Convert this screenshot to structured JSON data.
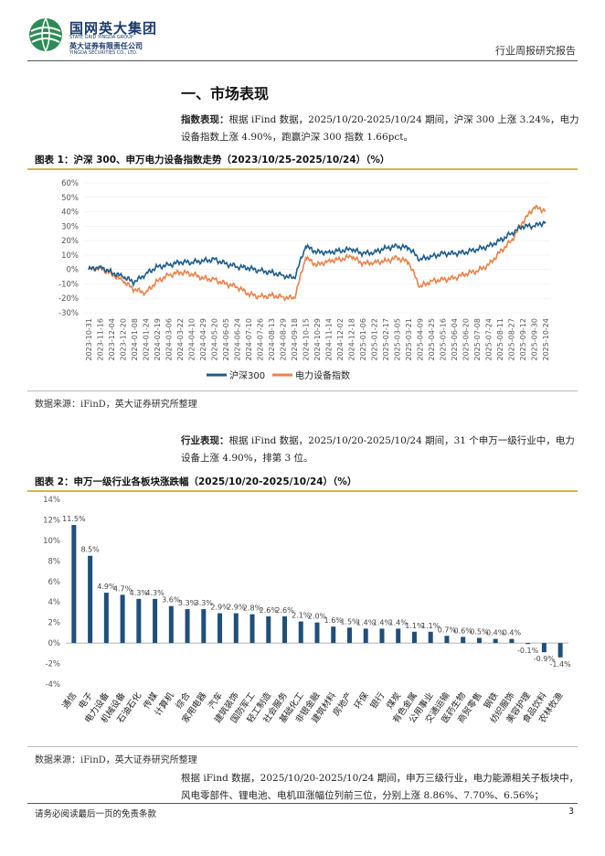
{
  "header": {
    "company_cn": "国网英大集团",
    "company_en": "STATE GRID YINGDA GROUP",
    "securities_cn": "英大证券有限责任公司",
    "securities_en": "YINGDA SECURITIES CO., LTD.",
    "report_type": "行业周报研究报告"
  },
  "section": {
    "title": "一、市场表现"
  },
  "para1": {
    "label": "指数表现：",
    "text": "根据 iFind 数据，2025/10/20-2025/10/24 期间，沪深 300 上涨 3.24%，电力设备指数上涨 4.90%，跑赢沪深 300 指数 1.66pct。"
  },
  "figure1": {
    "title": "图表 1：沪深 300、申万电力设备指数走势（2023/10/25-2025/10/24）（%）",
    "source": "数据来源：iFinD，英大证券研究所整理"
  },
  "para2": {
    "label": "行业表现：",
    "text": "根据 iFind 数据，2025/10/20-2025/10/24 期间，31 个申万一级行业中，电力设备上涨 4.90%，排第 3 位。"
  },
  "figure2": {
    "title": "图表 2：申万一级行业各板块涨跌幅（2025/10/20-2025/10/24）（%）",
    "source": "数据来源：iFinD，英大证券研究所整理"
  },
  "para3": {
    "text": "根据 iFind 数据，2025/10/20-2025/10/24 期间，申万三级行业，电力能源相关子板块中，风电零部件、锂电池、电机Ⅲ涨幅位列前三位，分别上涨 8.86%、7.70%、6.56%；"
  },
  "footer": {
    "disclaimer": "请务必阅读最后一页的免责条款",
    "page": "3"
  },
  "colors": {
    "hs300": "#1f5c8a",
    "power": "#e8834a",
    "bar": "#1f4f7a",
    "gold": "#d9b44a"
  },
  "chart_data": [
    {
      "type": "line",
      "title": "沪深300、申万电力设备指数走势",
      "ylim": [
        -30,
        60
      ],
      "yticks": [
        "60%",
        "50%",
        "40%",
        "30%",
        "20%",
        "10%",
        "0%",
        "-10%",
        "-20%",
        "-30%"
      ],
      "x": [
        "2023-10-31",
        "2023-11-16",
        "2023-12-04",
        "2023-12-20",
        "2024-01-08",
        "2024-01-24",
        "2024-02-19",
        "2024-03-06",
        "2024-03-22",
        "2024-04-10",
        "2024-04-29",
        "2024-05-20",
        "2024-06-05",
        "2024-06-24",
        "2024-07-10",
        "2024-07-26",
        "2024-08-13",
        "2024-08-29",
        "2024-09-18",
        "2024-10-15",
        "2024-10-29",
        "2024-11-14",
        "2024-12-02",
        "2024-12-18",
        "2025-01-06",
        "2025-01-22",
        "2025-02-17",
        "2025-03-05",
        "2025-03-21",
        "2025-04-09",
        "2025-04-25",
        "2025-05-16",
        "2025-06-04",
        "2025-06-20",
        "2025-07-08",
        "2025-07-24",
        "2025-08-11",
        "2025-08-27",
        "2025-09-12",
        "2025-09-30",
        "2025-10-24"
      ],
      "series": [
        {
          "name": "沪深300",
          "values": [
            0,
            2,
            -2,
            -5,
            -9,
            -3,
            2,
            3,
            5,
            5,
            6,
            7,
            4,
            2,
            1,
            -1,
            -2,
            -4,
            -6,
            16,
            12,
            12,
            13,
            14,
            11,
            12,
            15,
            16,
            15,
            7,
            9,
            11,
            11,
            12,
            14,
            16,
            20,
            25,
            30,
            30,
            33
          ]
        },
        {
          "name": "电力设备指数",
          "values": [
            0,
            1,
            -3,
            -8,
            -14,
            -16,
            -8,
            -4,
            -2,
            -3,
            -6,
            -7,
            -10,
            -12,
            -17,
            -19,
            -18,
            -19,
            -20,
            8,
            3,
            6,
            7,
            9,
            4,
            5,
            6,
            8,
            5,
            -12,
            -8,
            -7,
            -6,
            -3,
            -1,
            3,
            12,
            20,
            33,
            43,
            41
          ]
        }
      ]
    },
    {
      "type": "bar",
      "title": "申万一级行业各板块涨跌幅",
      "ylim": [
        -4,
        14
      ],
      "yticks": [
        "14%",
        "12%",
        "10%",
        "8%",
        "6%",
        "4%",
        "2%",
        "0%",
        "-2%",
        "-4%"
      ],
      "categories": [
        "通信",
        "电子",
        "电力设备",
        "机械设备",
        "石油石化",
        "传媒",
        "计算机",
        "综合",
        "家用电器",
        "汽车",
        "建筑装饰",
        "国防军工",
        "轻工制造",
        "社会服务",
        "基础化工",
        "非银金融",
        "建筑材料",
        "房地产",
        "环保",
        "银行",
        "煤炭",
        "有色金属",
        "公用事业",
        "交通运输",
        "医药生物",
        "商贸零售",
        "钢铁",
        "纺织服饰",
        "美容护理",
        "食品饮料",
        "农林牧渔"
      ],
      "values": [
        11.5,
        8.5,
        4.9,
        4.7,
        4.3,
        4.3,
        3.6,
        3.3,
        3.3,
        2.9,
        2.9,
        2.8,
        2.6,
        2.6,
        2.1,
        2.0,
        1.6,
        1.5,
        1.4,
        1.4,
        1.4,
        1.1,
        1.1,
        0.7,
        0.6,
        0.5,
        0.4,
        0.4,
        -0.1,
        -0.9,
        -1.4
      ],
      "labels": [
        "11.5%",
        "8.5%",
        "4.9%",
        "4.7%",
        "4.3%",
        "4.3%",
        "3.6%",
        "3.3%",
        "3.3%",
        "2.9%",
        "2.9%",
        "2.8%",
        "2.6%",
        "2.6%",
        "2.1%",
        "2.0%",
        "1.6%",
        "1.5%",
        "1.4%",
        "1.4%",
        "1.4%",
        "1.1%",
        "1.1%",
        "0.7%",
        "0.6%",
        "0.5%",
        "0.4%",
        "0.4%",
        "-0.1%",
        "-0.9%",
        "-1.4%"
      ]
    }
  ]
}
